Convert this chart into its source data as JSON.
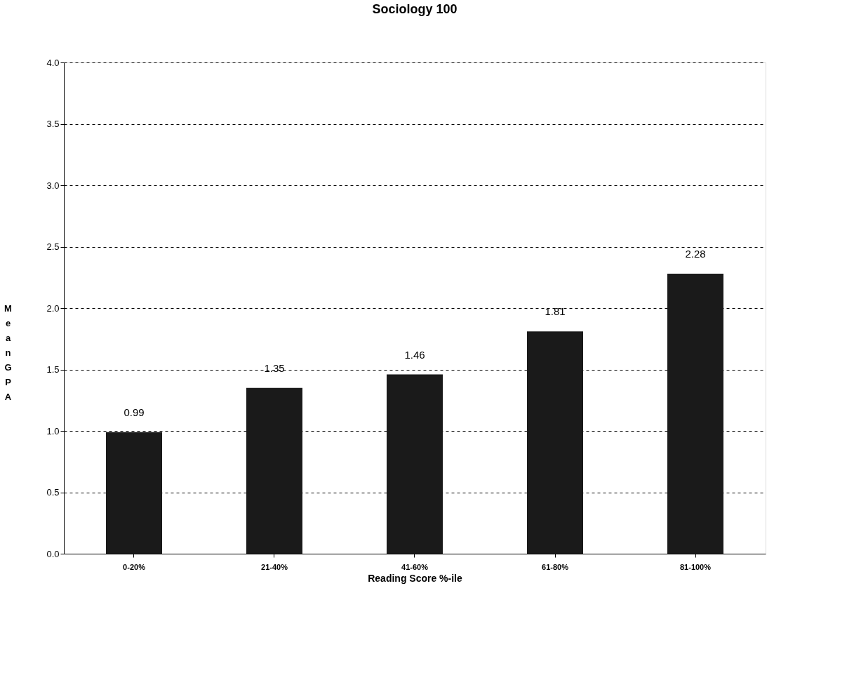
{
  "chart_data": {
    "type": "bar",
    "title": "Sociology 100",
    "xlabel": "Reading Score %-ile",
    "ylabel": "Mean GPA",
    "categories": [
      "0-20%",
      "21-40%",
      "41-60%",
      "61-80%",
      "81-100%"
    ],
    "values": [
      0.99,
      1.35,
      1.46,
      1.81,
      2.28
    ],
    "color": "#1a1a1a",
    "ylim": [
      0,
      4
    ],
    "yticks": [
      {
        "value": 0,
        "label": "0.0"
      },
      {
        "value": 0.5,
        "label": "0.5"
      },
      {
        "value": 1,
        "label": "1.0"
      },
      {
        "value": 1.5,
        "label": "1.5"
      },
      {
        "value": 2,
        "label": "2.0"
      },
      {
        "value": 2.5,
        "label": "2.5"
      },
      {
        "value": 3,
        "label": "3.0"
      },
      {
        "value": 3.5,
        "label": "3.5"
      },
      {
        "value": 4,
        "label": "4.0"
      }
    ],
    "grid": "y",
    "line_style": "dashed",
    "data_labels": true
  }
}
